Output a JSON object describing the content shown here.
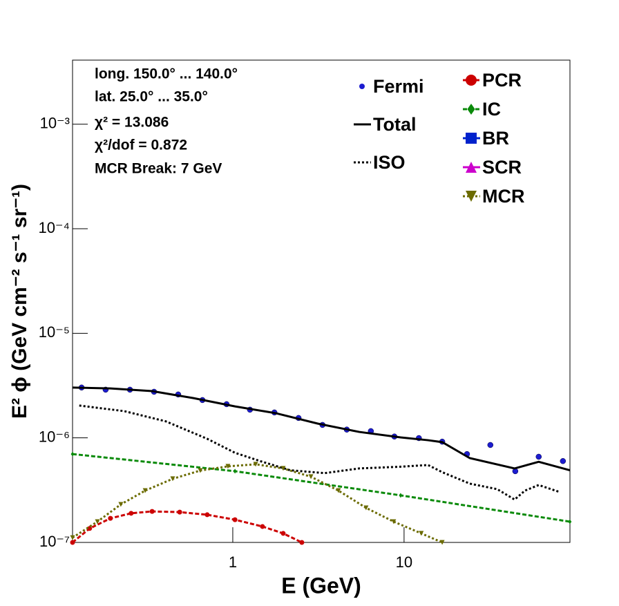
{
  "chart_data": {
    "type": "line",
    "xlabel": "E (GeV)",
    "ylabel": "E² ϕ (GeV cm⁻² s⁻¹ sr⁻¹)",
    "annotations": [
      "long. 150.0° ... 140.0°",
      "lat. 25.0° ... 35.0°",
      "χ² = 13.086",
      "χ²/dof = 0.872",
      "MCR Break:  7 GeV"
    ],
    "xlog": true,
    "ylog": true,
    "xlim": [
      0.116,
      93
    ],
    "ylim": [
      1e-07,
      0.0041
    ],
    "xticks": [
      1,
      10
    ],
    "yticks": [
      {
        "value": 1e-07,
        "label": "10⁻⁷"
      },
      {
        "value": 1e-06,
        "label": "10⁻⁶"
      },
      {
        "value": 1e-05,
        "label": "10⁻⁵"
      },
      {
        "value": 0.0001,
        "label": "10⁻⁴"
      },
      {
        "value": 0.001,
        "label": "10⁻³"
      }
    ],
    "series": [
      {
        "name": "Fermi",
        "color": "#1c1cd0",
        "style": "none",
        "marker": "circle",
        "x": [
          0.131,
          0.181,
          0.251,
          0.347,
          0.48,
          0.665,
          0.92,
          1.26,
          1.75,
          2.42,
          3.34,
          4.63,
          6.4,
          8.78,
          12.2,
          16.7,
          23.3,
          31.9,
          44.6,
          61.1,
          84.6
        ],
        "values": [
          3.03e-06,
          2.89e-06,
          2.89e-06,
          2.76e-06,
          2.6e-06,
          2.3e-06,
          2.1e-06,
          1.86e-06,
          1.75e-06,
          1.55e-06,
          1.33e-06,
          1.2e-06,
          1.16e-06,
          1.03e-06,
          9.95e-07,
          9.2e-07,
          7e-07,
          8.55e-07,
          4.8e-07,
          6.6e-07,
          6e-07
        ]
      },
      {
        "name": "Total",
        "color": "#000000",
        "style": "solid",
        "marker": "none",
        "x": [
          0.116,
          0.193,
          0.338,
          0.589,
          1.03,
          1.79,
          3.13,
          5.47,
          9.55,
          13.8,
          16.7,
          24.2,
          44.2,
          61.1,
          92.9
        ],
        "values": [
          3.03e-06,
          2.97e-06,
          2.8e-06,
          2.4e-06,
          2e-06,
          1.72e-06,
          1.37e-06,
          1.14e-06,
          1.01e-06,
          9.5e-07,
          9.1e-07,
          6.4e-07,
          5.1e-07,
          5.9e-07,
          4.9e-07
        ]
      },
      {
        "name": "ISO",
        "color": "#000000",
        "style": "dotted",
        "marker": "none",
        "x": [
          0.127,
          0.233,
          0.406,
          0.709,
          1.03,
          1.49,
          2.16,
          3.44,
          5.47,
          9.55,
          13.8,
          16.7,
          24.2,
          35.0,
          44.2,
          50.8,
          61.1,
          80.7
        ],
        "values": [
          2.04e-06,
          1.8e-06,
          1.44e-06,
          9.8e-07,
          7.2e-07,
          5.9e-07,
          4.9e-07,
          4.6e-07,
          5.1e-07,
          5.3e-07,
          5.5e-07,
          4.7e-07,
          3.65e-07,
          3.23e-07,
          2.57e-07,
          3.13e-07,
          3.54e-07,
          3.04e-07
        ]
      },
      {
        "name": "PCR",
        "color": "#cc0000",
        "style": "dashed",
        "marker": "circle",
        "x": [
          0.116,
          0.146,
          0.193,
          0.255,
          0.338,
          0.49,
          0.709,
          1.03,
          1.49,
          1.97,
          2.53
        ],
        "values": [
          1e-07,
          1.36e-07,
          1.7e-07,
          1.9e-07,
          1.98e-07,
          1.95e-07,
          1.84e-07,
          1.65e-07,
          1.42e-07,
          1.22e-07,
          1e-07
        ]
      },
      {
        "name": "IC",
        "color": "#0a8a0a",
        "style": "dashed",
        "marker": "diamond",
        "x": [
          0.116,
          1.03,
          9.55,
          92.9
        ],
        "values": [
          7e-07,
          4.8e-07,
          2.82e-07,
          1.58e-07
        ]
      },
      {
        "name": "BR",
        "color": "#0022cc",
        "style": "solid",
        "marker": "square",
        "x": [],
        "values": []
      },
      {
        "name": "SCR",
        "color": "#cc00cc",
        "style": "solid",
        "marker": "triangle",
        "x": [],
        "values": []
      },
      {
        "name": "MCR",
        "color": "#6b6b00",
        "style": "dotted",
        "marker": "triangle-down",
        "x": [
          0.116,
          0.162,
          0.222,
          0.308,
          0.446,
          0.646,
          0.937,
          1.36,
          1.97,
          2.86,
          4.14,
          6.0,
          8.7,
          12.6,
          16.7
        ],
        "values": [
          1.11e-07,
          1.58e-07,
          2.31e-07,
          3.13e-07,
          4.06e-07,
          4.87e-07,
          5.34e-07,
          5.59e-07,
          5.1e-07,
          4.25e-07,
          3.13e-07,
          2.14e-07,
          1.58e-07,
          1.22e-07,
          1e-07
        ]
      }
    ]
  }
}
